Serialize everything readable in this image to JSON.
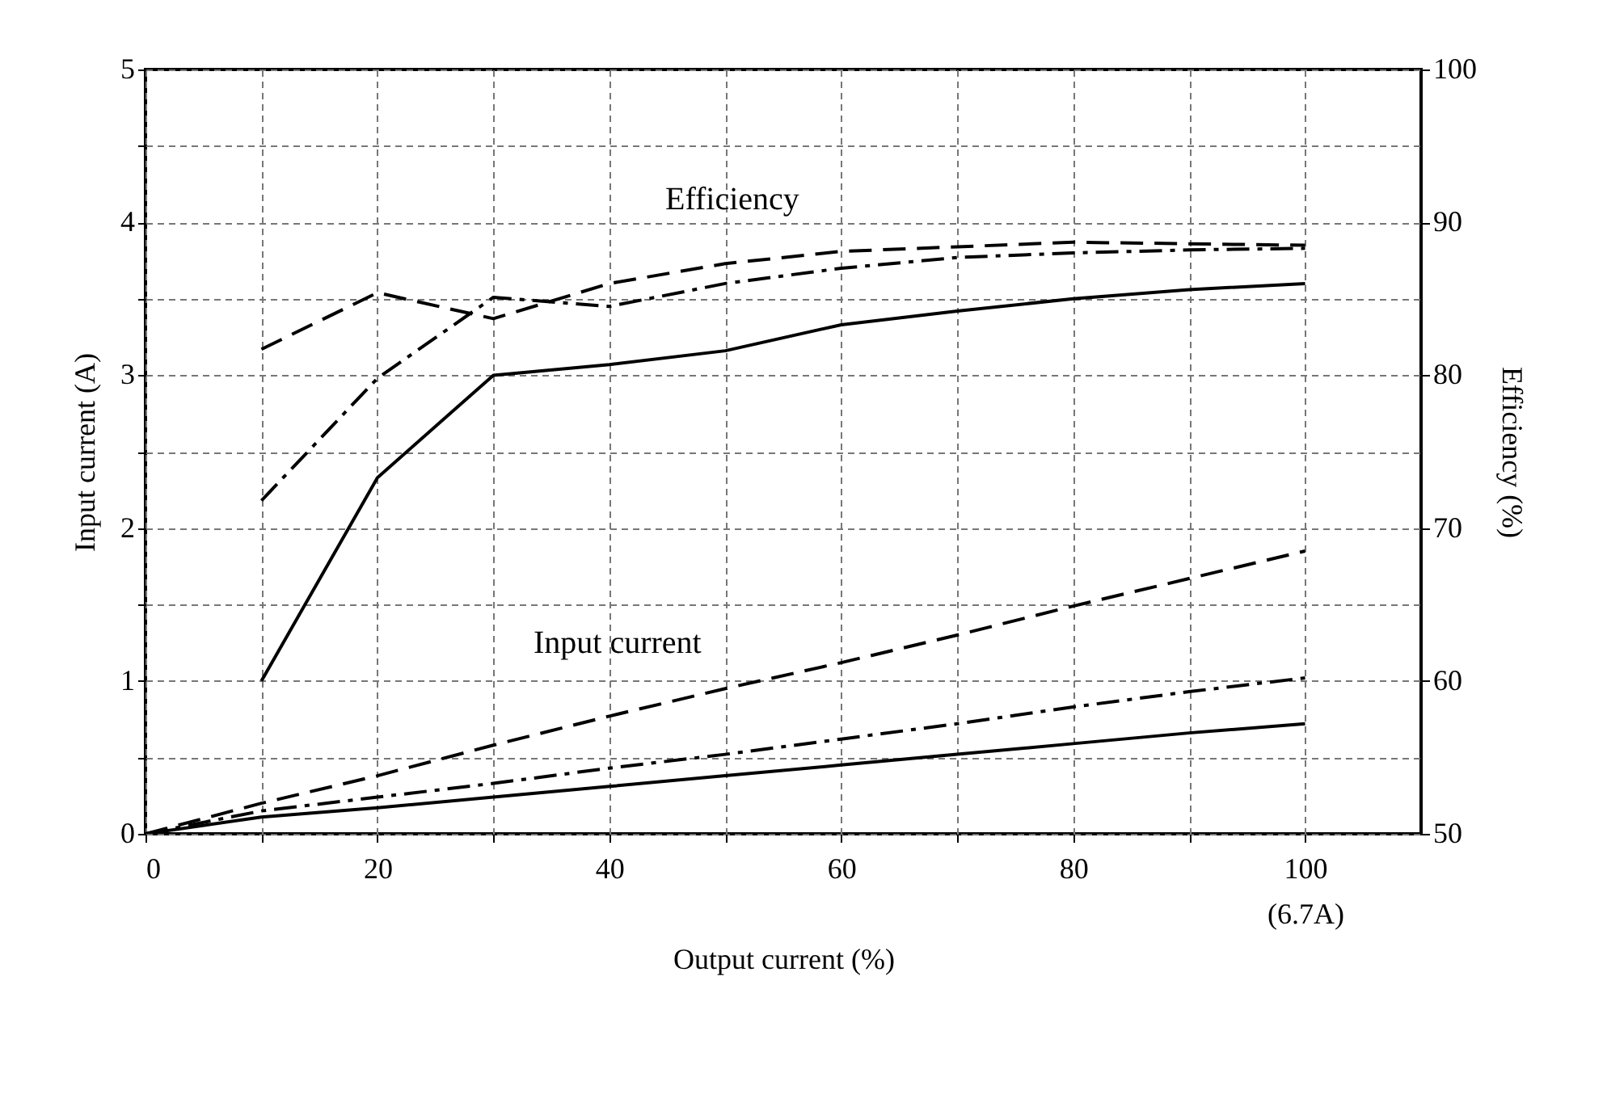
{
  "chart_data": {
    "type": "line",
    "xlabel": "Output current (%)",
    "ylabel": "Input current (A)",
    "y2label": "Efficiency (%)",
    "xlim": [
      0,
      110
    ],
    "xticks": [
      0,
      {
        "value": 10,
        "label": null
      },
      20,
      {
        "value": 30,
        "label": null
      },
      40,
      {
        "value": 50,
        "label": null
      },
      60,
      {
        "value": 70,
        "label": null
      },
      80,
      {
        "value": 90,
        "label": null
      },
      {
        "value": 100,
        "label": "100\n(6.7A)"
      }
    ],
    "ylim": [
      0,
      5
    ],
    "yticks": [
      0,
      {
        "value": 0.5,
        "label": null
      },
      1,
      {
        "value": 1.5,
        "label": null
      },
      2,
      {
        "value": 2.5,
        "label": null
      },
      3,
      {
        "value": 3.5,
        "label": null
      },
      4,
      {
        "value": 4.5,
        "label": null
      },
      5
    ],
    "y2lim": [
      50,
      100
    ],
    "y2ticks": [
      50,
      60,
      70,
      80,
      90,
      100
    ],
    "grid": true,
    "series": [
      {
        "color": "#000000",
        "line_style": "solid",
        "x": [
          0,
          10,
          20,
          30,
          40,
          50,
          60,
          70,
          80,
          90,
          100
        ],
        "values": [
          0,
          0.11,
          0.17,
          0.24,
          0.31,
          0.38,
          0.45,
          0.52,
          0.59,
          0.66,
          0.72
        ]
      },
      {
        "color": "#000000",
        "line_style": "dashdot",
        "x": [
          0,
          10,
          20,
          30,
          40,
          50,
          60,
          70,
          80,
          90,
          100
        ],
        "values": [
          0,
          0.15,
          0.24,
          0.33,
          0.43,
          0.52,
          0.62,
          0.72,
          0.83,
          0.93,
          1.02
        ]
      },
      {
        "color": "#000000",
        "line_style": "dashed",
        "x": [
          0,
          10,
          20,
          30,
          40,
          50,
          60,
          70,
          80,
          90,
          100
        ],
        "values": [
          0,
          0.2,
          0.38,
          0.58,
          0.77,
          0.95,
          1.12,
          1.3,
          1.49,
          1.67,
          1.85
        ]
      },
      {
        "color": "#000000",
        "line_style": "solid",
        "axis": "y2",
        "x": [
          10,
          20,
          30,
          40,
          50,
          60,
          70,
          80,
          90,
          100
        ],
        "values": [
          60,
          73.3,
          80,
          80.7,
          81.6,
          83.3,
          84.2,
          85,
          85.6,
          86
        ]
      },
      {
        "color": "#000000",
        "line_style": "dashdot",
        "axis": "y2",
        "x": [
          10,
          20,
          30,
          40,
          50,
          60,
          70,
          80,
          90,
          100
        ],
        "values": [
          71.8,
          79.8,
          85.1,
          84.5,
          86,
          87,
          87.7,
          88,
          88.2,
          88.3
        ]
      },
      {
        "color": "#000000",
        "line_style": "dashed",
        "axis": "y2",
        "x": [
          10,
          20,
          30,
          40,
          50,
          60,
          70,
          80,
          90,
          100
        ],
        "values": [
          81.7,
          85.4,
          83.7,
          86,
          87.3,
          88.1,
          88.4,
          88.7,
          88.6,
          88.5
        ]
      }
    ],
    "annotations": [
      "Efficiency",
      "Input current"
    ]
  }
}
